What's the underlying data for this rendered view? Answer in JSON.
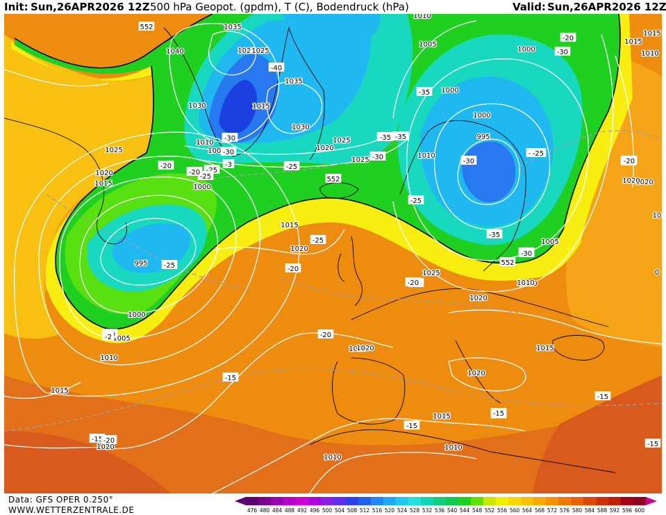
{
  "header": {
    "init_label": "Init:",
    "init_value": "Sun,26APR2026 12Z",
    "title": "500 hPa Geopot. (gpdm), T (C), Bodendruck (hPa)",
    "valid_label": "Valid:",
    "valid_value": "Sun,26APR2026 12Z"
  },
  "footer": {
    "data_source": "Data: GFS OPER 0.250°",
    "website": "WWW.WETTERZENTRALE.DE"
  },
  "scale": {
    "values": [
      "476",
      "480",
      "484",
      "488",
      "492",
      "496",
      "500",
      "504",
      "508",
      "512",
      "516",
      "520",
      "524",
      "528",
      "532",
      "536",
      "540",
      "544",
      "548",
      "552",
      "556",
      "560",
      "564",
      "568",
      "572",
      "576",
      "580",
      "584",
      "588",
      "592",
      "596",
      "600"
    ],
    "colors": [
      "#5a0070",
      "#7a0090",
      "#9a00b0",
      "#b800c8",
      "#d000d8",
      "#b000e0",
      "#8a20e8",
      "#6030f0",
      "#3040f0",
      "#2060f0",
      "#2088f8",
      "#20a8f8",
      "#20c8f0",
      "#20e0e0",
      "#10d8b0",
      "#10d080",
      "#10c850",
      "#20d020",
      "#60e000",
      "#c8e800",
      "#f0f000",
      "#f8d800",
      "#f8c000",
      "#f8a800",
      "#f89000",
      "#f07800",
      "#e86000",
      "#e04800",
      "#d03000",
      "#c02000",
      "#a80018",
      "#900020"
    ],
    "arrow_left_color": "#5a0070",
    "arrow_right_color": "#d0008a"
  },
  "map": {
    "colors": {
      "orange": "#ee8c10",
      "orange_light": "#f5a418",
      "orange_deep": "#e2701a",
      "red_orange": "#d85a1c",
      "yellow_orange": "#f8c010",
      "yellow": "#f8ee10",
      "green": "#20d020",
      "green_light": "#58e010",
      "teal": "#18d8c0",
      "cyan": "#20b8f0",
      "blue": "#2878f0",
      "blue_dark": "#1a40e0",
      "line_552": "#000000",
      "isobar": "#ffffff"
    },
    "contour_552_label": "552",
    "isobar_labels": [
      {
        "text": "1035"
      },
      {
        "text": "1040"
      },
      {
        "text": "1025"
      },
      {
        "text": "1025"
      },
      {
        "text": "1035"
      },
      {
        "text": "1030"
      },
      {
        "text": "1015"
      },
      {
        "text": "1030"
      },
      {
        "text": "1010"
      },
      {
        "text": "1005"
      },
      {
        "text": "1020"
      },
      {
        "text": "1025"
      },
      {
        "text": "1025"
      },
      {
        "text": "1020"
      },
      {
        "text": "1015"
      },
      {
        "text": "1025"
      },
      {
        "text": "1000"
      },
      {
        "text": "1015"
      },
      {
        "text": "1020"
      },
      {
        "text": "995"
      },
      {
        "text": "1000"
      },
      {
        "text": "1005"
      },
      {
        "text": "1010"
      },
      {
        "text": "1015"
      },
      {
        "text": "1020"
      },
      {
        "text": "1010"
      },
      {
        "text": "1005"
      },
      {
        "text": "1000"
      },
      {
        "text": "1000"
      },
      {
        "text": "1000"
      },
      {
        "text": "995"
      },
      {
        "text": "1010"
      },
      {
        "text": "1010"
      },
      {
        "text": "1015"
      },
      {
        "text": "1020"
      },
      {
        "text": "1005"
      },
      {
        "text": "1010"
      },
      {
        "text": "1025"
      },
      {
        "text": "1020"
      },
      {
        "text": "1015"
      },
      {
        "text": "1020"
      },
      {
        "text": "1020"
      },
      {
        "text": "1015"
      },
      {
        "text": "1010"
      },
      {
        "text": "1010"
      },
      {
        "text": "1020"
      },
      {
        "text": "1015"
      },
      {
        "text": "1020"
      },
      {
        "text": "10"
      },
      {
        "text": "0"
      },
      {
        "text": "1010"
      }
    ],
    "temp_labels": [
      {
        "text": "-40"
      },
      {
        "text": "-35"
      },
      {
        "text": "-35"
      },
      {
        "text": "-30"
      },
      {
        "text": "-30"
      },
      {
        "text": "-25"
      },
      {
        "text": "-20"
      },
      {
        "text": "-25"
      },
      {
        "text": "-25"
      },
      {
        "text": "-25"
      },
      {
        "text": "-20"
      },
      {
        "text": "-25"
      },
      {
        "text": "-20"
      },
      {
        "text": "-35"
      },
      {
        "text": "-35"
      },
      {
        "text": "-30"
      },
      {
        "text": "-25"
      },
      {
        "text": "-30"
      },
      {
        "text": "-35"
      },
      {
        "text": "-30"
      },
      {
        "text": "-20"
      },
      {
        "text": "-30"
      },
      {
        "text": "-25"
      },
      {
        "text": "-20"
      },
      {
        "text": "-20"
      },
      {
        "text": "-20"
      },
      {
        "text": "-20"
      },
      {
        "text": "-15"
      },
      {
        "text": "-15"
      },
      {
        "text": "-15"
      },
      {
        "text": "-15"
      },
      {
        "text": "-15"
      },
      {
        "text": "-15"
      },
      {
        "text": "-20"
      },
      {
        "text": "-20"
      },
      {
        "text": "-15"
      },
      {
        "text": "-25"
      },
      {
        "text": "-2"
      },
      {
        "text": "-3"
      },
      {
        "text": "-30"
      },
      {
        "text": "-20"
      }
    ],
    "pressure_systems": [
      {
        "kind": "low",
        "value": "995"
      },
      {
        "kind": "low",
        "value": "995"
      }
    ]
  }
}
